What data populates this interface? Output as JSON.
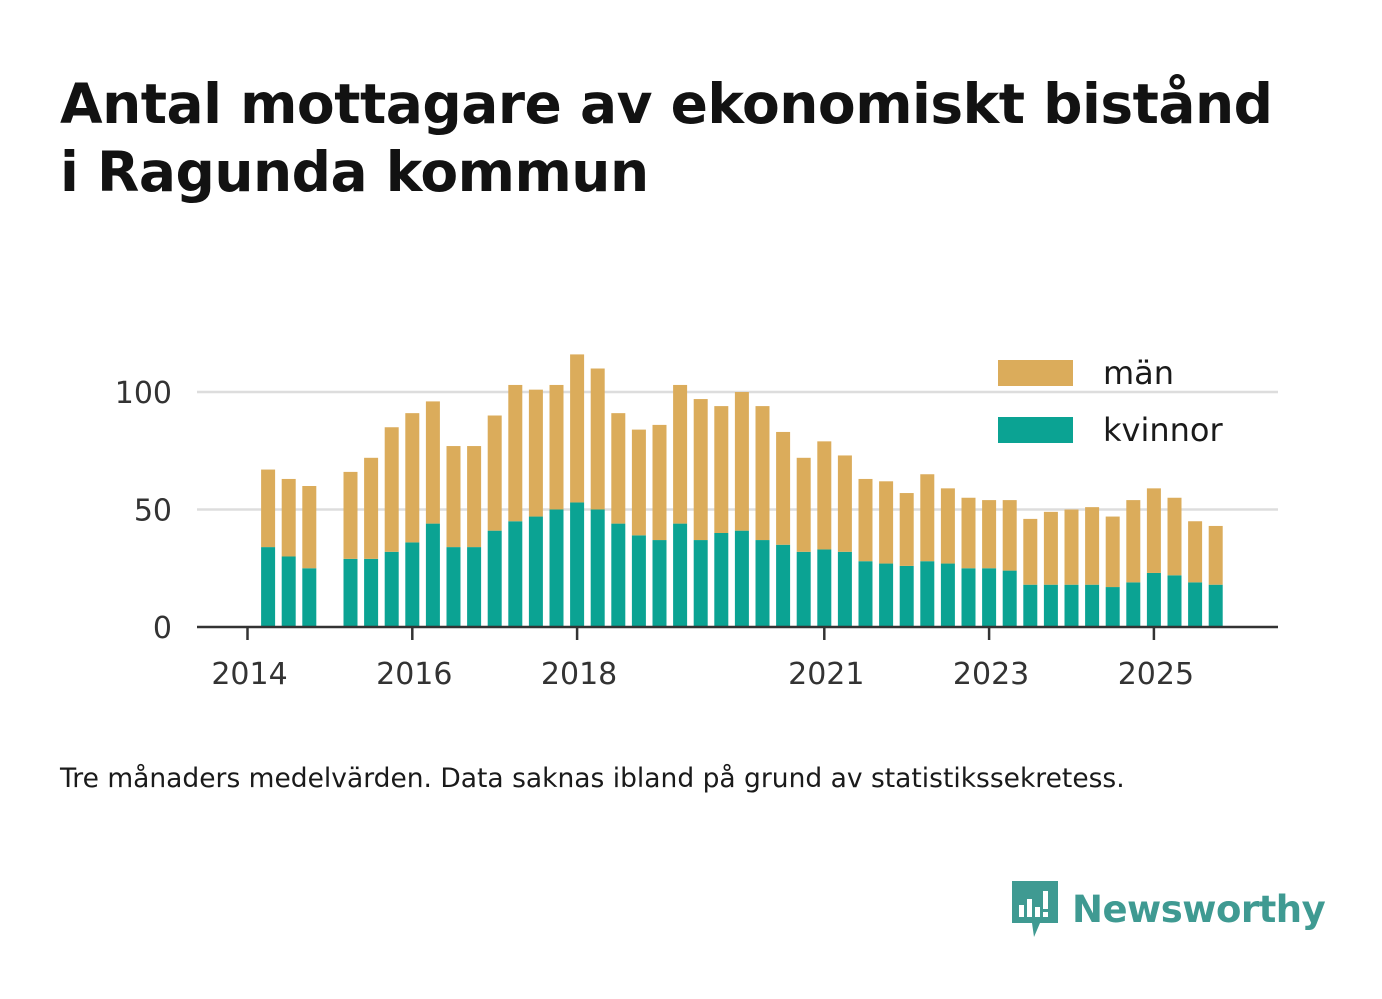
{
  "title_line1": "Antal mottagare av ekonomiskt bistånd",
  "title_line2": "i Ragunda kommun",
  "caption": "Tre månaders medelvärden. Data saknas ibland på grund av statistikssekretess.",
  "brand": {
    "name": "Newsworthy",
    "icon": "newsworthy-logo-icon",
    "color": "#3f9a92"
  },
  "colors": {
    "kvinnor": "#0ba393",
    "man": "#dbac5b",
    "grid": "#dddddd",
    "axis": "#333333"
  },
  "chart_data": {
    "type": "bar",
    "stacked": true,
    "title": "Antal mottagare av ekonomiskt bistånd i Ragunda kommun",
    "xlabel": "",
    "ylabel": "",
    "ylim": [
      0,
      120
    ],
    "yticks": [
      0,
      50,
      100
    ],
    "grid": true,
    "legend_position": "top-right",
    "xtick_labels": [
      "2014",
      "2016",
      "2018",
      "2021",
      "2023",
      "2025"
    ],
    "categories": [
      "2014-Q1",
      "2014-Q2",
      "2014-Q3",
      "2014-Q4",
      "2015-Q1",
      "2015-Q2",
      "2015-Q3",
      "2015-Q4",
      "2016-Q1",
      "2016-Q2",
      "2016-Q3",
      "2016-Q4",
      "2017-Q1",
      "2017-Q2",
      "2017-Q3",
      "2017-Q4",
      "2018-Q1",
      "2018-Q2",
      "2018-Q3",
      "2018-Q4",
      "2019-Q1",
      "2019-Q2",
      "2019-Q3",
      "2019-Q4",
      "2020-Q1",
      "2020-Q2",
      "2020-Q3",
      "2020-Q4",
      "2021-Q1",
      "2021-Q2",
      "2021-Q3",
      "2021-Q4",
      "2022-Q1",
      "2022-Q2",
      "2022-Q3",
      "2022-Q4",
      "2023-Q1",
      "2023-Q2",
      "2023-Q3",
      "2023-Q4",
      "2024-Q1",
      "2024-Q2",
      "2024-Q3",
      "2024-Q4",
      "2025-Q1",
      "2025-Q2",
      "2025-Q3",
      "2025-Q4"
    ],
    "series": [
      {
        "name": "kvinnor",
        "values": [
          null,
          34,
          30,
          25,
          null,
          29,
          29,
          32,
          36,
          44,
          34,
          34,
          41,
          45,
          47,
          50,
          53,
          50,
          44,
          39,
          37,
          44,
          37,
          40,
          41,
          37,
          35,
          32,
          33,
          32,
          28,
          27,
          26,
          28,
          27,
          25,
          25,
          24,
          18,
          18,
          18,
          18,
          17,
          19,
          23,
          22,
          19,
          18
        ]
      },
      {
        "name": "män",
        "values": [
          null,
          33,
          33,
          35,
          null,
          37,
          43,
          53,
          55,
          52,
          43,
          43,
          49,
          58,
          54,
          53,
          63,
          60,
          47,
          45,
          49,
          59,
          60,
          54,
          59,
          57,
          48,
          40,
          46,
          41,
          35,
          35,
          31,
          37,
          32,
          30,
          29,
          30,
          28,
          31,
          32,
          33,
          30,
          35,
          36,
          33,
          26,
          25
        ]
      }
    ]
  }
}
